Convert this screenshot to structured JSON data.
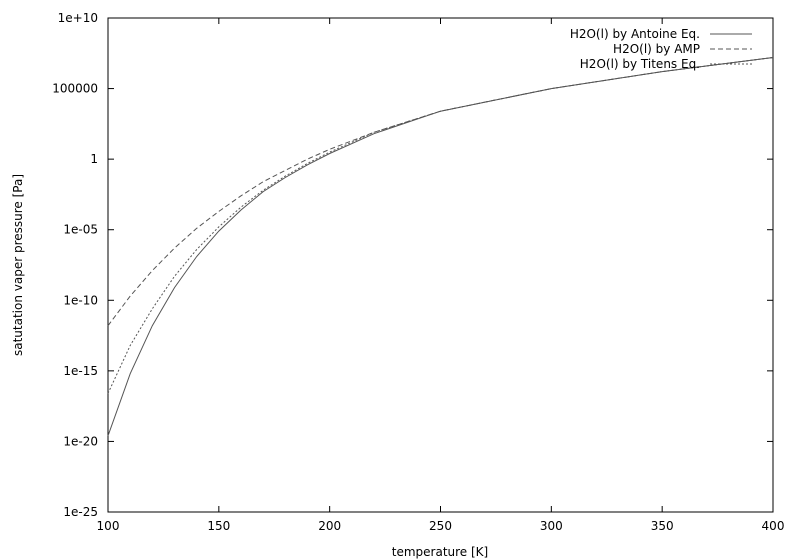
{
  "chart_data": {
    "type": "line",
    "title": "",
    "xlabel": "temperature [K]",
    "ylabel": "satutation vaper pressure [Pa]",
    "xlim": [
      100,
      400
    ],
    "ylim_exponent": [
      -25,
      10
    ],
    "yscale": "log",
    "grid": false,
    "legend_position": "top-right",
    "x_ticks": [
      100,
      150,
      200,
      250,
      300,
      350,
      400
    ],
    "y_ticks": [
      "1e-25",
      "1e-20",
      "1e-15",
      "1e-10",
      "1e-05",
      "1",
      "100000",
      "1e+10"
    ],
    "series": [
      {
        "name": "H2O(l) by Antoine Eq.",
        "style": "solid",
        "color": "#555555",
        "x": [
          100,
          110,
          120,
          130,
          140,
          150,
          160,
          170,
          180,
          190,
          200,
          220,
          250,
          300,
          350,
          400
        ],
        "log10_y": [
          -19.6,
          -15.2,
          -11.8,
          -9.1,
          -6.9,
          -5.1,
          -3.6,
          -2.3,
          -1.3,
          -0.4,
          0.4,
          1.8,
          3.4,
          5.0,
          6.2,
          7.2
        ]
      },
      {
        "name": "H2O(l) by AMP",
        "style": "dashed",
        "color": "#555555",
        "x": [
          100,
          110,
          120,
          130,
          140,
          150,
          160,
          170,
          180,
          190,
          200,
          220,
          250,
          300,
          350,
          400
        ],
        "log10_y": [
          -11.8,
          -9.7,
          -7.9,
          -6.3,
          -4.9,
          -3.7,
          -2.6,
          -1.6,
          -0.8,
          0.0,
          0.7,
          1.9,
          3.4,
          5.0,
          6.2,
          7.2
        ]
      },
      {
        "name": "H2O(l) by Titens Eq.",
        "style": "dotted",
        "color": "#555555",
        "x": [
          100,
          110,
          120,
          130,
          140,
          150,
          160,
          170,
          180,
          190,
          200,
          220,
          250,
          300,
          350,
          400
        ],
        "log10_y": [
          -16.6,
          -13.2,
          -10.6,
          -8.3,
          -6.4,
          -4.8,
          -3.4,
          -2.2,
          -1.2,
          -0.3,
          0.5,
          1.9,
          3.4,
          5.0,
          6.2,
          7.2
        ]
      }
    ]
  }
}
